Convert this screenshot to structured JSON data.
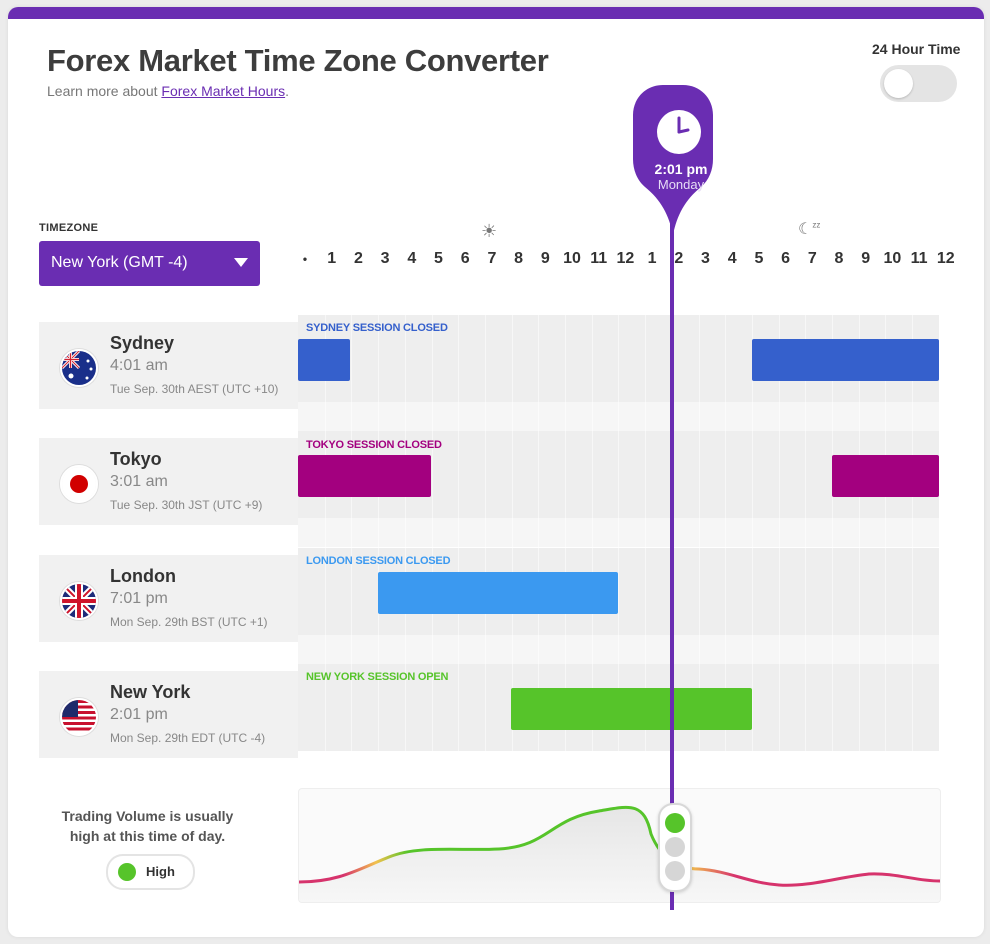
{
  "header": {
    "title": "Forex Market Time Zone Converter",
    "learn_prefix": "Learn more about ",
    "learn_link": "Forex Market Hours",
    "learn_suffix": "."
  },
  "toggle24": {
    "label": "24 Hour Time",
    "enabled": false
  },
  "timezone": {
    "label": "TIMEZONE",
    "selected": "New York (GMT -4)"
  },
  "hours": [
    "•",
    "1",
    "2",
    "3",
    "4",
    "5",
    "6",
    "7",
    "8",
    "9",
    "10",
    "11",
    "12",
    "1",
    "2",
    "3",
    "4",
    "5",
    "6",
    "7",
    "8",
    "9",
    "10",
    "11",
    "12"
  ],
  "icons": {
    "day": "sun-icon",
    "night": "moon-sleep-icon",
    "now": "clock-icon"
  },
  "now": {
    "time": "2:01 pm",
    "day": "Monday"
  },
  "cities": [
    {
      "name": "Sydney",
      "time": "4:01 am",
      "date": "Tue Sep. 30th AEST (UTC +10)",
      "flag": "australia-flag-icon",
      "session_label": "SYDNEY SESSION CLOSED",
      "color": "#3560cc",
      "status": "closed"
    },
    {
      "name": "Tokyo",
      "time": "3:01 am",
      "date": "Tue Sep. 30th JST (UTC +9)",
      "flag": "japan-flag-icon",
      "session_label": "TOKYO SESSION CLOSED",
      "color": "#a3007f",
      "status": "closed"
    },
    {
      "name": "London",
      "time": "7:01 pm",
      "date": "Mon Sep. 29th BST (UTC +1)",
      "flag": "uk-flag-icon",
      "session_label": "LONDON SESSION CLOSED",
      "color": "#3b99f0",
      "status": "closed"
    },
    {
      "name": "New York",
      "time": "2:01 pm",
      "date": "Mon Sep. 29th EDT (UTC -4)",
      "flag": "us-flag-icon",
      "session_label": "NEW YORK SESSION OPEN",
      "color": "#56c42a",
      "status": "open"
    }
  ],
  "volume": {
    "text": "Trading Volume is usually high at this time of day.",
    "level": "High",
    "level_color": "#56c42a"
  },
  "colors": {
    "accent": "#6a2db2",
    "high": "#56c42a",
    "medium": "#f2c14e",
    "low": "#d6336c"
  }
}
